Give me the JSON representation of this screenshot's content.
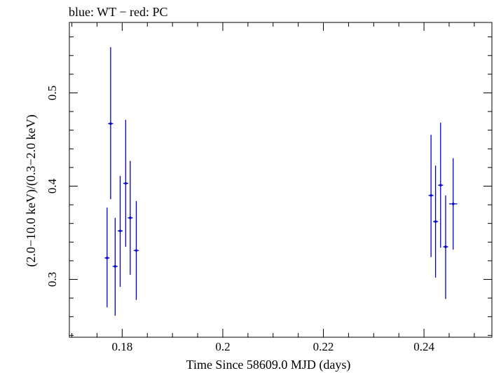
{
  "chart_data": {
    "type": "scatter",
    "title": "blue: WT − red: PC",
    "xlabel": "Time Since 58609.0 MJD (days)",
    "ylabel": "(2.0−10.0 keV)/(0.3−2.0 keV)",
    "xlim": [
      0.1695,
      0.2535
    ],
    "ylim": [
      0.238,
      0.5755
    ],
    "x_ticks": [
      0.18,
      0.2,
      0.22,
      0.24
    ],
    "x_tick_labels": [
      "0.18",
      "0.2",
      "0.22",
      "0.24"
    ],
    "y_ticks": [
      0.3,
      0.4,
      0.5
    ],
    "y_tick_labels": [
      "0.3",
      "0.4",
      "0.5"
    ],
    "grid": false,
    "series": [
      {
        "color": "#0000cc",
        "points": [
          {
            "x": 0.177,
            "xerr": 0.0005,
            "y": 0.323,
            "ylo": 0.27,
            "yhi": 0.377
          },
          {
            "x": 0.1777,
            "xerr": 0.0005,
            "y": 0.467,
            "ylo": 0.386,
            "yhi": 0.549
          },
          {
            "x": 0.1786,
            "xerr": 0.0005,
            "y": 0.314,
            "ylo": 0.261,
            "yhi": 0.366
          },
          {
            "x": 0.1796,
            "xerr": 0.0005,
            "y": 0.352,
            "ylo": 0.292,
            "yhi": 0.411
          },
          {
            "x": 0.1807,
            "xerr": 0.0005,
            "y": 0.403,
            "ylo": 0.335,
            "yhi": 0.471
          },
          {
            "x": 0.1816,
            "xerr": 0.0005,
            "y": 0.366,
            "ylo": 0.305,
            "yhi": 0.427
          },
          {
            "x": 0.1828,
            "xerr": 0.0005,
            "y": 0.331,
            "ylo": 0.278,
            "yhi": 0.384
          },
          {
            "x": 0.2414,
            "xerr": 0.0005,
            "y": 0.39,
            "ylo": 0.324,
            "yhi": 0.455
          },
          {
            "x": 0.2423,
            "xerr": 0.0005,
            "y": 0.362,
            "ylo": 0.302,
            "yhi": 0.422
          },
          {
            "x": 0.2433,
            "xerr": 0.0005,
            "y": 0.401,
            "ylo": 0.334,
            "yhi": 0.468
          },
          {
            "x": 0.2443,
            "xerr": 0.0005,
            "y": 0.335,
            "ylo": 0.279,
            "yhi": 0.39
          },
          {
            "x": 0.2458,
            "xerr": 0.0008,
            "y": 0.381,
            "ylo": 0.332,
            "yhi": 0.43
          }
        ]
      }
    ]
  }
}
